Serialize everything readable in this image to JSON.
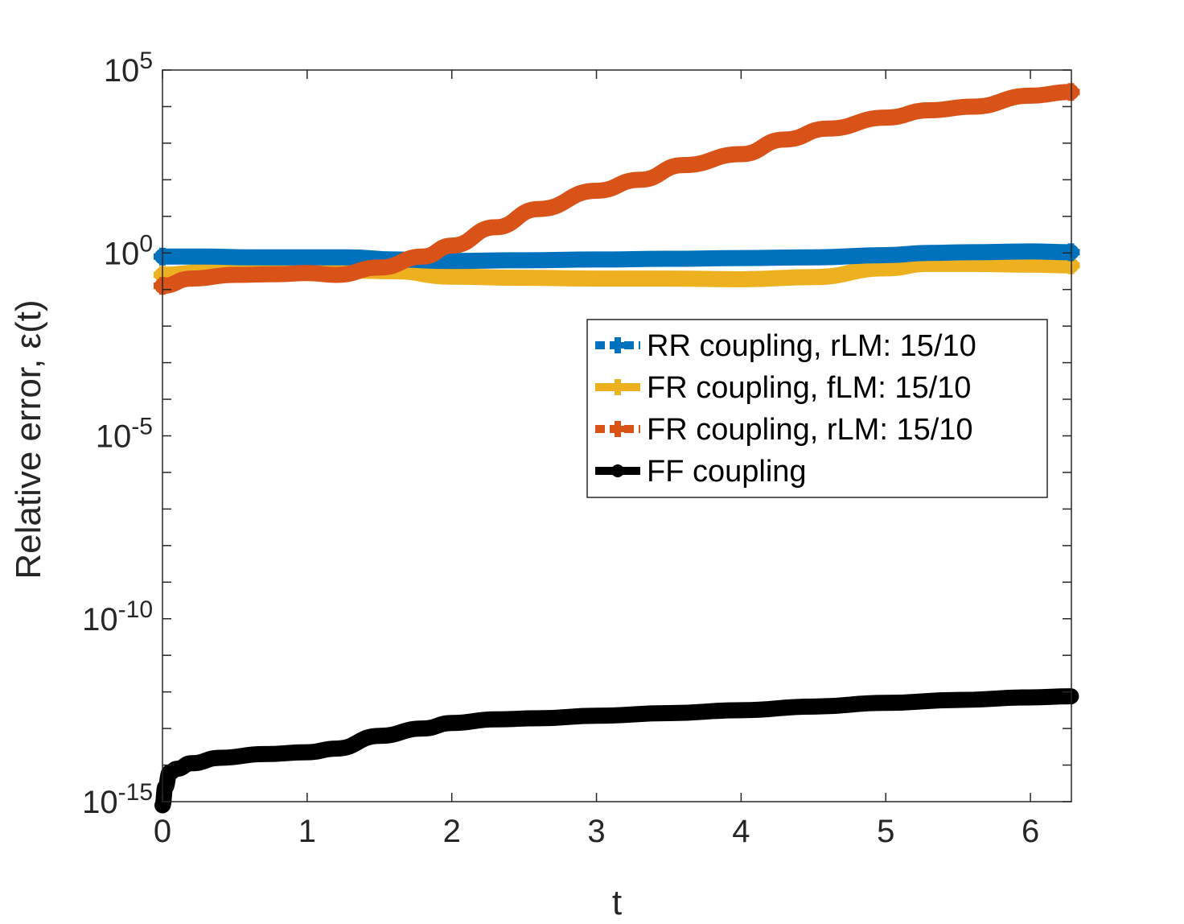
{
  "chart_data": {
    "type": "line",
    "title": "",
    "xlabel": "t",
    "ylabel": "Relative error, ε(t)",
    "yscale": "log",
    "xlim": [
      0,
      6.2832
    ],
    "ylim_exponent": [
      -15,
      5
    ],
    "xticks": [
      0,
      1,
      2,
      3,
      4,
      5,
      6
    ],
    "xtick_labels": [
      "0",
      "1",
      "2",
      "3",
      "4",
      "5",
      "6"
    ],
    "yticks_exponent": [
      -15,
      -10,
      -5,
      0,
      5
    ],
    "ytick_labels": [
      {
        "base": "10",
        "exp": "-15"
      },
      {
        "base": "10",
        "exp": "-10"
      },
      {
        "base": "10",
        "exp": "-5"
      },
      {
        "base": "10",
        "exp": "0"
      },
      {
        "base": "10",
        "exp": "5"
      }
    ],
    "grid": false,
    "legend_position": "right-center",
    "series": [
      {
        "name": "RR coupling, rLM: 15/10",
        "color": "#0072BD",
        "marker": "plus",
        "line": "dotted",
        "x": [
          0,
          0.3,
          0.6,
          1.0,
          1.3,
          1.6,
          2.0,
          2.5,
          3.0,
          3.5,
          4.0,
          4.5,
          5.0,
          5.3,
          5.6,
          6.0,
          6.28
        ],
        "log10_y": [
          -0.1,
          -0.1,
          -0.12,
          -0.12,
          -0.12,
          -0.18,
          -0.22,
          -0.2,
          -0.18,
          -0.16,
          -0.14,
          -0.12,
          -0.06,
          0.0,
          0.02,
          0.04,
          0.02
        ]
      },
      {
        "name": "FR coupling, fLM: 15/10",
        "color": "#EDB120",
        "marker": "plus",
        "line": "solid",
        "x": [
          0,
          0.3,
          0.6,
          1.0,
          1.3,
          1.6,
          2.0,
          2.5,
          3.0,
          3.5,
          4.0,
          4.5,
          5.0,
          5.3,
          5.6,
          6.0,
          6.28
        ],
        "log10_y": [
          -0.6,
          -0.52,
          -0.48,
          -0.46,
          -0.48,
          -0.5,
          -0.65,
          -0.68,
          -0.7,
          -0.7,
          -0.72,
          -0.66,
          -0.42,
          -0.3,
          -0.3,
          -0.32,
          -0.34
        ]
      },
      {
        "name": "FR coupling, rLM: 15/10",
        "color": "#D95319",
        "marker": "plus",
        "line": "dotted",
        "x": [
          0,
          0.2,
          0.5,
          0.8,
          1.0,
          1.2,
          1.5,
          1.8,
          2.0,
          2.3,
          2.6,
          3.0,
          3.3,
          3.6,
          4.0,
          4.3,
          4.6,
          5.0,
          5.3,
          5.6,
          6.0,
          6.28
        ],
        "log10_y": [
          -0.9,
          -0.7,
          -0.6,
          -0.58,
          -0.55,
          -0.6,
          -0.4,
          -0.1,
          0.2,
          0.7,
          1.2,
          1.7,
          2.0,
          2.4,
          2.7,
          3.1,
          3.4,
          3.7,
          3.9,
          4.0,
          4.3,
          4.4
        ]
      },
      {
        "name": "FF coupling",
        "color": "#000000",
        "marker": "dot",
        "line": "solid",
        "x": [
          0,
          0.02,
          0.05,
          0.1,
          0.2,
          0.4,
          0.7,
          1.0,
          1.2,
          1.5,
          1.8,
          2.0,
          2.3,
          2.6,
          3.0,
          3.5,
          4.0,
          4.5,
          5.0,
          5.5,
          6.0,
          6.28
        ],
        "log10_y": [
          -15.1,
          -14.6,
          -14.2,
          -14.1,
          -13.95,
          -13.8,
          -13.7,
          -13.65,
          -13.55,
          -13.2,
          -13.0,
          -12.85,
          -12.75,
          -12.72,
          -12.65,
          -12.58,
          -12.5,
          -12.4,
          -12.3,
          -12.22,
          -12.15,
          -12.12
        ]
      }
    ]
  }
}
